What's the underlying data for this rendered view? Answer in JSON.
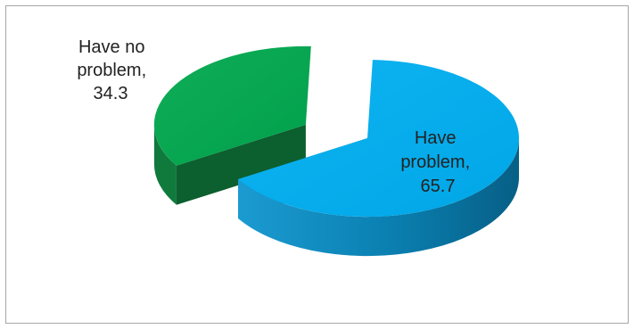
{
  "chart_data": {
    "type": "pie",
    "style": "3d-exploded",
    "slices": [
      {
        "label_line1": "Have",
        "label_line2": "problem,",
        "value_text": "65.7",
        "value": 65.7,
        "color": "#00aeef",
        "side_color": "#0a83b4"
      },
      {
        "label_line1": "Have no",
        "label_line2": "problem,",
        "value_text": "34.3",
        "value": 34.3,
        "color": "#00a651",
        "side_color": "#0f6e35"
      }
    ]
  }
}
